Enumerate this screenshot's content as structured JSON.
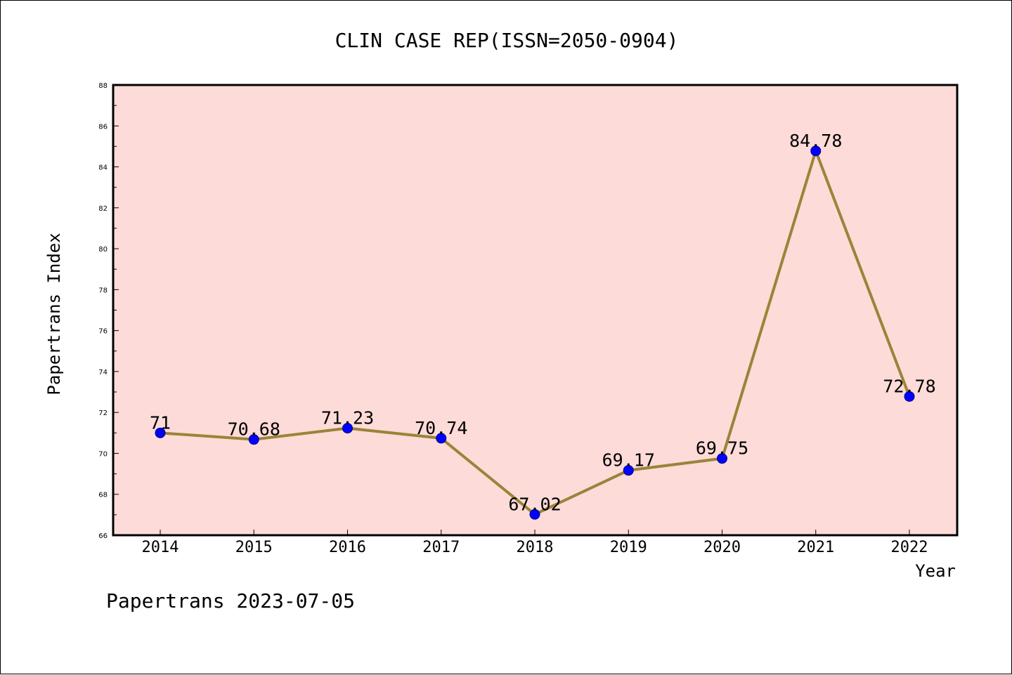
{
  "chart_data": {
    "type": "line",
    "title": "CLIN CASE REP(ISSN=2050-0904)",
    "xlabel": "Year",
    "ylabel": "Papertrans Index",
    "categories": [
      "2014",
      "2015",
      "2016",
      "2017",
      "2018",
      "2019",
      "2020",
      "2021",
      "2022"
    ],
    "series": [
      {
        "values": [
          71,
          70.68,
          71.23,
          70.74,
          67.02,
          69.17,
          69.75,
          84.78,
          72.78
        ],
        "labels": [
          "71",
          "70.68",
          "71.23",
          "70.74",
          "67.02",
          "69.17",
          "69.75",
          "84.78",
          "72.78"
        ]
      }
    ],
    "ylim": [
      66,
      88
    ],
    "yticks": [
      "66",
      "68",
      "70",
      "72",
      "74",
      "76",
      "78",
      "80",
      "82",
      "84",
      "86",
      "88"
    ],
    "grid": false,
    "legend": "none",
    "colors": {
      "plot_background": "#fddbd8",
      "line": "#9a8438",
      "marker": "#0000ff",
      "marker_edge": "#00008b"
    }
  },
  "footer": "Papertrans 2023-07-05"
}
